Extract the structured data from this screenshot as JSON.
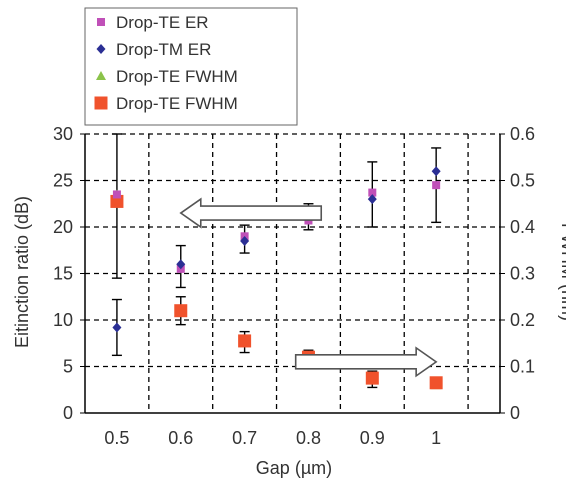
{
  "chart_data": {
    "type": "scatter",
    "title": "",
    "xlabel": "Gap (µm)",
    "ylabel": "Eitinction ratio (dB)",
    "y2label": "FWHM (nm)",
    "x_categories": [
      "0.5",
      "0.6",
      "0.7",
      "0.8",
      "0.9",
      "1"
    ],
    "ylim": [
      0,
      30
    ],
    "y2lim": [
      0,
      0.6
    ],
    "yticks": [
      "0",
      "5",
      "10",
      "15",
      "20",
      "25",
      "30"
    ],
    "y2ticks": [
      "0",
      "0.1",
      "0.2",
      "0.3",
      "0.4",
      "0.5",
      "0.6"
    ],
    "grid": "dashed",
    "legend_position": "top-left",
    "series": [
      {
        "name": "Drop-TE ER",
        "axis": "left",
        "marker": "square",
        "color": "#c050b8",
        "x": [
          0.5,
          0.6,
          0.7,
          0.8,
          0.9,
          1.0
        ],
        "y": [
          23.5,
          15.5,
          19.0,
          20.7,
          23.7,
          24.5
        ]
      },
      {
        "name": "Drop-TM ER",
        "axis": "left",
        "marker": "diamond",
        "color": "#2b2f94",
        "x": [
          0.5,
          0.6,
          0.7,
          0.8,
          0.9,
          1.0
        ],
        "y": [
          9.2,
          16.0,
          18.5,
          21.3,
          23.0,
          26.0
        ],
        "err_low": [
          6.2,
          13.5,
          17.2,
          19.7,
          20.0,
          20.5
        ],
        "err_high": [
          12.2,
          18.0,
          20.2,
          22.5,
          27.0,
          28.5
        ]
      },
      {
        "name": "Drop-TE FWHM",
        "axis": "right",
        "marker": "triangle",
        "color": "#8bc34a",
        "x": [
          0.5,
          0.6,
          0.7,
          0.8,
          0.9,
          1.0
        ],
        "y": [
          0.47,
          0.22,
          0.155,
          0.12,
          0.075,
          0.06
        ]
      },
      {
        "name": "Drop-TE FWHM",
        "axis": "right",
        "marker": "square-large",
        "color": "#f0522c",
        "x": [
          0.5,
          0.6,
          0.7,
          0.8,
          0.9,
          1.0
        ],
        "y": [
          0.455,
          0.22,
          0.155,
          0.12,
          0.075,
          0.065
        ],
        "err_low": [
          0.29,
          0.19,
          0.13,
          0.105,
          0.055,
          0.055
        ],
        "err_high": [
          0.6,
          0.25,
          0.175,
          0.135,
          0.09,
          0.075
        ]
      }
    ],
    "annotations": [
      {
        "shape": "arrow-left",
        "from": [
          0.82,
          21.5
        ],
        "to": [
          0.6,
          21.5
        ]
      },
      {
        "shape": "arrow-right",
        "from": [
          0.78,
          5.5
        ],
        "to": [
          1.0,
          5.5
        ]
      }
    ]
  }
}
